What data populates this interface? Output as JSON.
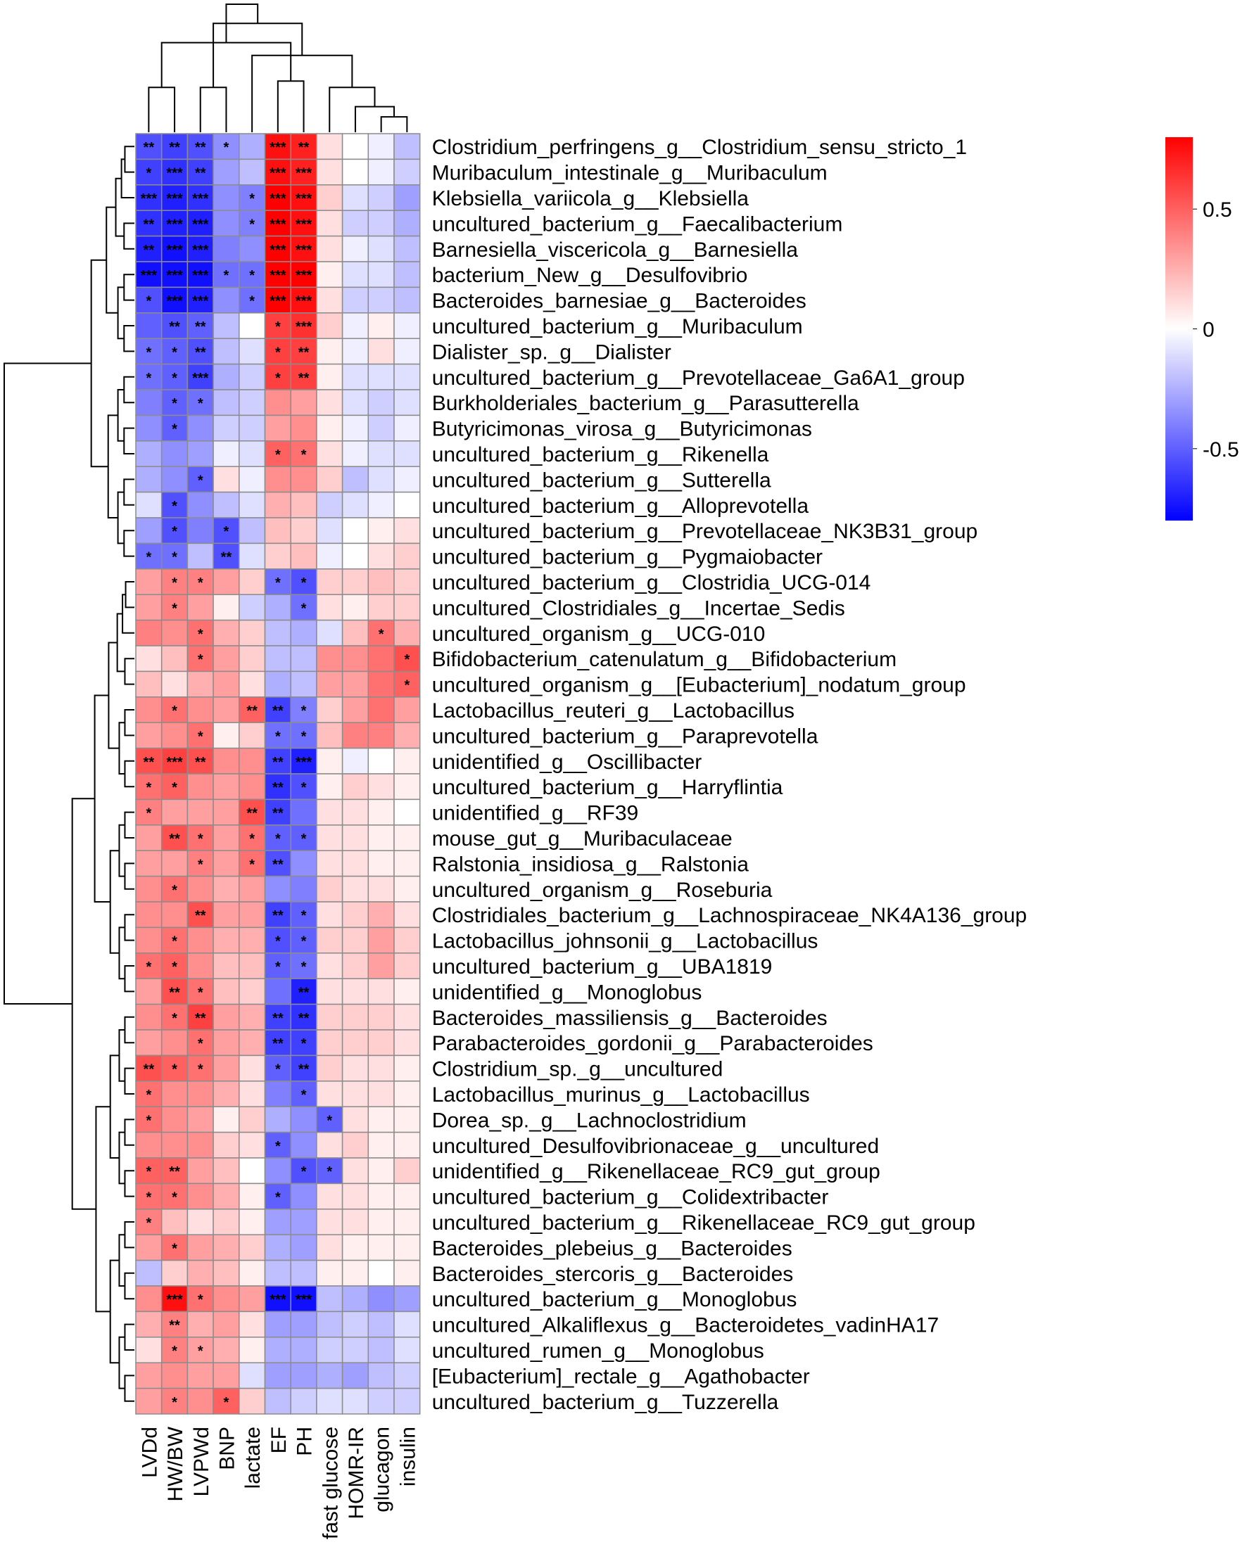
{
  "chart_data": {
    "type": "heatmap",
    "title": "",
    "columns": [
      "LVDd",
      "HW/BW",
      "LVPWd",
      "BNP",
      "lactate",
      "EF",
      "PH",
      "fast glucose",
      "HOMR-IR",
      "glucagon",
      "insulin"
    ],
    "rows": [
      "Clostridium_perfringens_g__Clostridium_sensu_stricto_1",
      "Muribaculum_intestinale_g__Muribaculum",
      "Klebsiella_variicola_g__Klebsiella",
      "uncultured_bacterium_g__Faecalibacterium",
      "Barnesiella_viscericola_g__Barnesiella",
      "bacterium_New_g__Desulfovibrio",
      "Bacteroides_barnesiae_g__Bacteroides",
      "uncultured_bacterium_g__Muribaculum",
      "Dialister_sp._g__Dialister",
      "uncultured_bacterium_g__Prevotellaceae_Ga6A1_group",
      "Burkholderiales_bacterium_g__Parasutterella",
      "Butyricimonas_virosa_g__Butyricimonas",
      "uncultured_bacterium_g__Rikenella",
      "uncultured_bacterium_g__Sutterella",
      "uncultured_bacterium_g__Alloprevotella",
      "uncultured_bacterium_g__Prevotellaceae_NK3B31_group",
      "uncultured_bacterium_g__Pygmaiobacter",
      "uncultured_bacterium_g__Clostridia_UCG-014",
      "uncultured_Clostridiales_g__Incertae_Sedis",
      "uncultured_organism_g__UCG-010",
      "Bifidobacterium_catenulatum_g__Bifidobacterium",
      "uncultured_organism_g__[Eubacterium]_nodatum_group",
      "Lactobacillus_reuteri_g__Lactobacillus",
      "uncultured_bacterium_g__Paraprevotella",
      "unidentified_g__Oscillibacter",
      "uncultured_bacterium_g__Harryflintia",
      "unidentified_g__RF39",
      "mouse_gut_g__Muribaculaceae",
      "Ralstonia_insidiosa_g__Ralstonia",
      "uncultured_organism_g__Roseburia",
      "Clostridiales_bacterium_g__Lachnospiraceae_NK4A136_group",
      "Lactobacillus_johnsonii_g__Lactobacillus",
      "uncultured_bacterium_g__UBA1819",
      "unidentified_g__Monoglobus",
      "Bacteroides_massiliensis_g__Bacteroides",
      "Parabacteroides_gordonii_g__Parabacteroides",
      "Clostridium_sp._g__uncultured",
      "Lactobacillus_murinus_g__Lactobacillus",
      "Dorea_sp._g__Lachnoclostridium",
      "uncultured_Desulfovibrionaceae_g__uncultured",
      "unidentified_g__Rikenellaceae_RC9_gut_group",
      "uncultured_bacterium_g__Colidextribacter",
      "uncultured_bacterium_g__Rikenellaceae_RC9_gut_group",
      "Bacteroides_plebeius_g__Bacteroides",
      "Bacteroides_stercoris_g__Bacteroides",
      "uncultured_bacterium_g__Monoglobus",
      "uncultured_Alkaliflexus_g__Bacteroidetes_vadinHA17",
      "uncultured_rumen_g__Monoglobus",
      "[Eubacterium]_rectale_g__Agathobacter",
      "uncultured_bacterium_g__Tuzzerella"
    ],
    "values": [
      [
        -0.55,
        -0.6,
        -0.55,
        -0.35,
        -0.25,
        0.75,
        0.7,
        0.1,
        0.0,
        -0.05,
        -0.2
      ],
      [
        -0.6,
        -0.65,
        -0.6,
        -0.3,
        -0.2,
        0.75,
        0.7,
        0.1,
        0.0,
        -0.05,
        -0.15
      ],
      [
        -0.65,
        -0.7,
        -0.65,
        -0.35,
        -0.4,
        0.8,
        0.75,
        0.15,
        -0.1,
        -0.15,
        -0.3
      ],
      [
        -0.65,
        -0.7,
        -0.7,
        -0.35,
        -0.4,
        0.8,
        0.75,
        0.1,
        -0.15,
        -0.15,
        -0.25
      ],
      [
        -0.7,
        -0.75,
        -0.7,
        -0.4,
        -0.35,
        0.8,
        0.75,
        0.1,
        -0.05,
        -0.1,
        -0.2
      ],
      [
        -0.75,
        -0.75,
        -0.75,
        -0.45,
        -0.45,
        0.8,
        0.8,
        0.05,
        -0.1,
        -0.1,
        -0.2
      ],
      [
        -0.55,
        -0.75,
        -0.7,
        -0.35,
        -0.45,
        0.8,
        0.75,
        0.1,
        -0.15,
        -0.15,
        -0.2
      ],
      [
        -0.5,
        -0.55,
        -0.5,
        -0.2,
        0.0,
        0.6,
        0.65,
        0.15,
        -0.05,
        0.05,
        -0.05
      ],
      [
        -0.45,
        -0.5,
        -0.55,
        -0.2,
        -0.1,
        0.6,
        0.6,
        0.05,
        -0.05,
        0.1,
        -0.05
      ],
      [
        -0.45,
        -0.5,
        -0.6,
        -0.25,
        -0.15,
        0.6,
        0.6,
        0.05,
        -0.1,
        -0.1,
        -0.1
      ],
      [
        -0.4,
        -0.5,
        -0.45,
        -0.2,
        -0.15,
        0.35,
        0.3,
        0.1,
        -0.1,
        -0.15,
        -0.1
      ],
      [
        -0.35,
        -0.5,
        -0.35,
        -0.15,
        -0.15,
        0.3,
        0.35,
        0.05,
        -0.05,
        -0.15,
        -0.05
      ],
      [
        -0.25,
        -0.35,
        -0.3,
        -0.05,
        -0.1,
        0.5,
        0.45,
        0.1,
        -0.05,
        -0.1,
        -0.1
      ],
      [
        -0.25,
        -0.35,
        -0.5,
        0.1,
        -0.05,
        0.35,
        0.35,
        0.15,
        -0.2,
        -0.1,
        -0.05
      ],
      [
        -0.1,
        -0.55,
        -0.35,
        -0.2,
        -0.1,
        0.25,
        0.2,
        -0.15,
        -0.1,
        -0.05,
        0.0
      ],
      [
        -0.3,
        -0.55,
        -0.4,
        -0.55,
        -0.2,
        0.2,
        0.15,
        -0.1,
        0.0,
        0.05,
        0.1
      ],
      [
        -0.45,
        -0.45,
        -0.2,
        -0.55,
        -0.1,
        0.15,
        0.2,
        -0.05,
        0.0,
        0.1,
        0.15
      ],
      [
        0.3,
        0.4,
        0.4,
        0.3,
        0.15,
        -0.45,
        -0.55,
        0.15,
        0.15,
        0.2,
        0.15
      ],
      [
        0.3,
        0.4,
        0.3,
        0.05,
        -0.15,
        -0.25,
        -0.45,
        0.1,
        0.05,
        0.15,
        0.15
      ],
      [
        0.4,
        0.35,
        0.45,
        0.25,
        0.15,
        -0.2,
        -0.25,
        -0.1,
        0.2,
        0.45,
        0.25
      ],
      [
        0.1,
        0.2,
        0.45,
        0.3,
        0.15,
        -0.2,
        -0.2,
        0.35,
        0.35,
        0.45,
        0.55
      ],
      [
        0.2,
        0.1,
        0.25,
        0.3,
        0.1,
        -0.25,
        -0.2,
        0.3,
        0.3,
        0.45,
        0.5
      ],
      [
        0.35,
        0.45,
        0.35,
        0.3,
        0.5,
        -0.6,
        -0.4,
        0.15,
        0.3,
        0.45,
        0.3
      ],
      [
        0.3,
        0.35,
        0.45,
        0.05,
        0.15,
        -0.45,
        -0.45,
        0.2,
        0.4,
        0.4,
        0.25
      ],
      [
        0.55,
        0.6,
        0.55,
        0.35,
        0.35,
        -0.6,
        -0.7,
        0.05,
        -0.05,
        0.0,
        0.05
      ],
      [
        0.45,
        0.5,
        0.35,
        0.3,
        0.35,
        -0.65,
        -0.55,
        0.05,
        0.15,
        0.1,
        0.05
      ],
      [
        0.4,
        0.3,
        0.3,
        0.3,
        0.55,
        -0.6,
        -0.45,
        0.1,
        0.1,
        0.05,
        0.0
      ],
      [
        0.3,
        0.55,
        0.45,
        0.3,
        0.45,
        -0.5,
        -0.5,
        0.1,
        0.1,
        0.05,
        0.05
      ],
      [
        0.3,
        0.3,
        0.4,
        0.3,
        0.45,
        -0.55,
        -0.35,
        0.1,
        0.1,
        0.05,
        0.05
      ],
      [
        0.35,
        0.45,
        0.35,
        0.25,
        0.3,
        -0.35,
        -0.4,
        0.15,
        0.1,
        0.1,
        0.05
      ],
      [
        0.35,
        0.35,
        0.55,
        0.3,
        0.3,
        -0.6,
        -0.5,
        0.1,
        0.15,
        0.25,
        0.1
      ],
      [
        0.35,
        0.45,
        0.35,
        0.25,
        0.25,
        -0.55,
        -0.5,
        0.15,
        0.15,
        0.3,
        0.15
      ],
      [
        0.45,
        0.5,
        0.35,
        0.2,
        0.2,
        -0.5,
        -0.45,
        0.1,
        0.15,
        0.3,
        0.15
      ],
      [
        0.3,
        0.55,
        0.45,
        0.2,
        0.15,
        -0.45,
        -0.7,
        0.1,
        0.1,
        0.1,
        0.05
      ],
      [
        0.35,
        0.45,
        0.6,
        0.3,
        0.25,
        -0.6,
        -0.65,
        0.15,
        0.15,
        0.15,
        0.1
      ],
      [
        0.3,
        0.35,
        0.45,
        0.3,
        0.25,
        -0.6,
        -0.6,
        0.15,
        0.15,
        0.15,
        0.1
      ],
      [
        0.55,
        0.5,
        0.45,
        0.3,
        0.1,
        -0.5,
        -0.6,
        0.15,
        0.1,
        0.1,
        0.05
      ],
      [
        0.45,
        0.35,
        0.35,
        0.25,
        0.1,
        -0.4,
        -0.5,
        0.1,
        0.1,
        0.1,
        0.05
      ],
      [
        0.45,
        0.35,
        0.3,
        0.05,
        0.15,
        -0.25,
        -0.35,
        -0.5,
        0.1,
        0.05,
        0.05
      ],
      [
        0.35,
        0.35,
        0.35,
        0.15,
        0.1,
        -0.5,
        -0.35,
        0.1,
        0.15,
        0.05,
        0.05
      ],
      [
        0.5,
        0.5,
        0.3,
        0.2,
        0.0,
        -0.35,
        -0.55,
        -0.5,
        0.1,
        0.05,
        0.15
      ],
      [
        0.45,
        0.45,
        0.35,
        0.25,
        0.05,
        -0.5,
        -0.35,
        0.1,
        0.1,
        0.05,
        0.05
      ],
      [
        0.4,
        0.2,
        0.1,
        0.15,
        0.05,
        -0.3,
        -0.3,
        0.1,
        0.1,
        0.05,
        0.05
      ],
      [
        0.3,
        0.45,
        0.3,
        0.25,
        0.15,
        -0.25,
        -0.3,
        0.1,
        0.05,
        0.05,
        0.05
      ],
      [
        -0.2,
        0.15,
        0.25,
        0.2,
        0.05,
        -0.2,
        -0.2,
        0.05,
        0.05,
        0.0,
        0.05
      ],
      [
        0.35,
        0.75,
        0.45,
        0.35,
        0.3,
        -0.75,
        -0.75,
        -0.2,
        -0.25,
        -0.35,
        -0.3
      ],
      [
        0.25,
        0.4,
        0.25,
        0.3,
        0.1,
        -0.3,
        -0.3,
        -0.2,
        -0.15,
        -0.2,
        -0.1
      ],
      [
        0.1,
        0.4,
        0.3,
        0.25,
        0.05,
        -0.25,
        -0.25,
        -0.15,
        -0.15,
        -0.2,
        -0.1
      ],
      [
        0.3,
        0.35,
        0.3,
        0.3,
        -0.1,
        -0.3,
        -0.3,
        -0.25,
        -0.3,
        -0.2,
        -0.15
      ],
      [
        0.3,
        0.4,
        0.35,
        0.5,
        0.15,
        -0.2,
        -0.15,
        -0.1,
        -0.1,
        -0.15,
        -0.15
      ]
    ],
    "significance": [
      [
        "**",
        "**",
        "**",
        "*",
        "",
        "***",
        "**",
        "",
        "",
        "",
        ""
      ],
      [
        "*",
        "***",
        "**",
        "",
        "",
        "***",
        "***",
        "",
        "",
        "",
        ""
      ],
      [
        "***",
        "***",
        "***",
        "",
        "*",
        "***",
        "***",
        "",
        "",
        "",
        ""
      ],
      [
        "**",
        "***",
        "***",
        "",
        "*",
        "***",
        "***",
        "",
        "",
        "",
        ""
      ],
      [
        "**",
        "***",
        "***",
        "",
        "",
        "***",
        "***",
        "",
        "",
        "",
        ""
      ],
      [
        "***",
        "***",
        "***",
        "*",
        "*",
        "***",
        "***",
        "",
        "",
        "",
        ""
      ],
      [
        "*",
        "***",
        "***",
        "",
        "*",
        "***",
        "***",
        "",
        "",
        "",
        ""
      ],
      [
        "",
        "**",
        "**",
        "",
        "",
        "*",
        "***",
        "",
        "",
        "",
        ""
      ],
      [
        "*",
        "*",
        "**",
        "",
        "",
        "*",
        "**",
        "",
        "",
        "",
        ""
      ],
      [
        "*",
        "*",
        "***",
        "",
        "",
        "*",
        "**",
        "",
        "",
        "",
        ""
      ],
      [
        "",
        "*",
        "*",
        "",
        "",
        "",
        "",
        "",
        "",
        "",
        ""
      ],
      [
        "",
        "*",
        "",
        "",
        "",
        "",
        "",
        "",
        "",
        "",
        ""
      ],
      [
        "",
        "",
        "",
        "",
        "",
        "*",
        "*",
        "",
        "",
        "",
        ""
      ],
      [
        "",
        "",
        "*",
        "",
        "",
        "",
        "",
        "",
        "",
        "",
        ""
      ],
      [
        "",
        "*",
        "",
        "",
        "",
        "",
        "",
        "",
        "",
        "",
        ""
      ],
      [
        "",
        "*",
        "",
        "*",
        "",
        "",
        "",
        "",
        "",
        "",
        ""
      ],
      [
        "*",
        "*",
        "",
        "**",
        "",
        "",
        "",
        "",
        "",
        "",
        ""
      ],
      [
        "",
        "*",
        "*",
        "",
        "",
        "*",
        "*",
        "",
        "",
        "",
        ""
      ],
      [
        "",
        "*",
        "",
        "",
        "",
        "",
        "*",
        "",
        "",
        "",
        ""
      ],
      [
        "",
        "",
        "*",
        "",
        "",
        "",
        "",
        "",
        "",
        "*",
        ""
      ],
      [
        "",
        "",
        "*",
        "",
        "",
        "",
        "",
        "",
        "",
        "",
        "*"
      ],
      [
        "",
        "",
        "",
        "",
        "",
        "",
        "",
        "",
        "",
        "",
        "*"
      ],
      [
        "",
        "*",
        "",
        "",
        "**",
        "**",
        "*",
        "",
        "",
        "",
        ""
      ],
      [
        "",
        "",
        "*",
        "",
        "",
        "*",
        "*",
        "",
        "",
        "",
        ""
      ],
      [
        "**",
        "***",
        "**",
        "",
        "",
        "**",
        "***",
        "",
        "",
        "",
        ""
      ],
      [
        "*",
        "*",
        "",
        "",
        "",
        "**",
        "*",
        "",
        "",
        "",
        ""
      ],
      [
        "*",
        "",
        "",
        "",
        "**",
        "**",
        "",
        "",
        "",
        "",
        ""
      ],
      [
        "",
        "**",
        "*",
        "",
        "*",
        "*",
        "*",
        "",
        "",
        "",
        ""
      ],
      [
        "",
        "",
        "*",
        "",
        "*",
        "**",
        "",
        "",
        "",
        "",
        ""
      ],
      [
        "",
        "*",
        "",
        "",
        "",
        "",
        "",
        "",
        "",
        "",
        ""
      ],
      [
        "",
        "",
        "**",
        "",
        "",
        "**",
        "*",
        "",
        "",
        "",
        ""
      ],
      [
        "",
        "*",
        "",
        "",
        "",
        "*",
        "*",
        "",
        "",
        "",
        ""
      ],
      [
        "*",
        "*",
        "",
        "",
        "",
        "*",
        "*",
        "",
        "",
        "",
        ""
      ],
      [
        "",
        "**",
        "*",
        "",
        "",
        "",
        "**",
        "",
        "",
        "",
        ""
      ],
      [
        "",
        "*",
        "**",
        "",
        "",
        "**",
        "**",
        "",
        "",
        "",
        ""
      ],
      [
        "",
        "",
        "*",
        "",
        "",
        "**",
        "*",
        "",
        "",
        "",
        ""
      ],
      [
        "**",
        "*",
        "*",
        "",
        "",
        "*",
        "**",
        "",
        "",
        "",
        ""
      ],
      [
        "*",
        "",
        "",
        "",
        "",
        "",
        "*",
        "",
        "",
        "",
        ""
      ],
      [
        "*",
        "",
        "",
        "",
        "",
        "",
        "",
        "*",
        "",
        "",
        ""
      ],
      [
        "",
        "",
        "",
        "",
        "",
        "*",
        "",
        "",
        "",
        "",
        ""
      ],
      [
        "*",
        "**",
        "",
        "",
        "",
        "",
        "*",
        "*",
        "",
        "",
        ""
      ],
      [
        "*",
        "*",
        "",
        "",
        "",
        "*",
        "",
        "",
        "",
        "",
        ""
      ],
      [
        "*",
        "",
        "",
        "",
        "",
        "",
        "",
        "",
        "",
        "",
        ""
      ],
      [
        "",
        "*",
        "",
        "",
        "",
        "",
        "",
        "",
        "",
        "",
        ""
      ],
      [
        "",
        "",
        "",
        "",
        "",
        "",
        "",
        "",
        "",
        "",
        ""
      ],
      [
        "",
        "***",
        "*",
        "",
        "",
        "***",
        "***",
        "",
        "",
        "",
        ""
      ],
      [
        "",
        "**",
        "",
        "",
        "",
        "",
        "",
        "",
        "",
        "",
        ""
      ],
      [
        "",
        "*",
        "*",
        "",
        "",
        "",
        "",
        "",
        "",
        "",
        ""
      ],
      [
        "",
        "",
        "",
        "",
        "",
        "",
        "",
        "",
        "",
        "",
        ""
      ],
      [
        "",
        "*",
        "",
        "*",
        "",
        "",
        "",
        "",
        "",
        "",
        ""
      ]
    ],
    "color_scale": {
      "min": -0.8,
      "max": 0.8,
      "low": "#0000ff",
      "mid": "#ffffff",
      "high": "#ff0000"
    },
    "legend_ticks": [
      {
        "label": "0.5",
        "value": 0.5
      },
      {
        "label": "0",
        "value": 0
      },
      {
        "label": "-0.5",
        "value": -0.5
      }
    ],
    "col_dendrogram": {
      "merges": [
        [
          9,
          10
        ],
        [
          8,
          11
        ],
        [
          7,
          12
        ],
        [
          0,
          1
        ],
        [
          2,
          3
        ],
        [
          5,
          6
        ],
        [
          13,
          4
        ],
        [
          14,
          16
        ],
        [
          15,
          17
        ],
        [
          18,
          19
        ]
      ],
      "heights": [
        0.12,
        0.2,
        0.35,
        0.35,
        0.35,
        0.4,
        0.6,
        0.7,
        0.85,
        1.0
      ]
    },
    "grid_color": "#8c8c8c",
    "significance_color": "#555555"
  }
}
